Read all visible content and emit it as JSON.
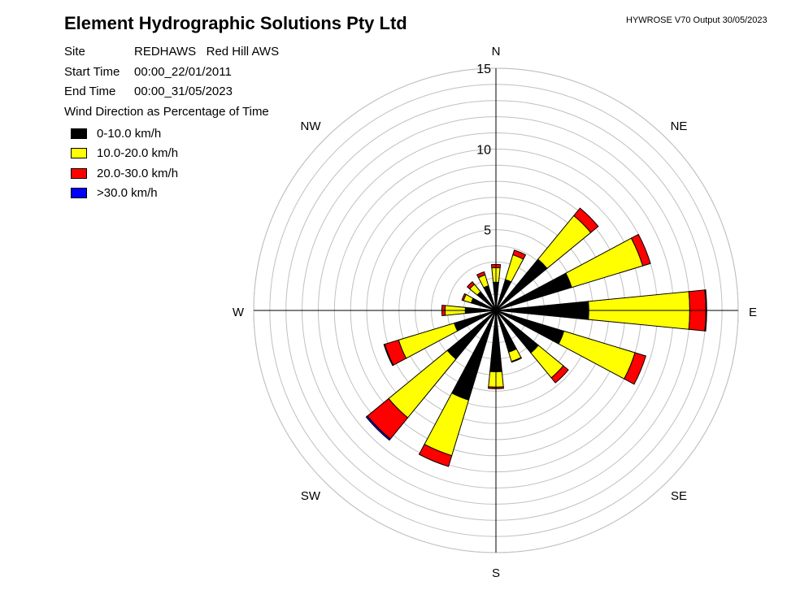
{
  "header": {
    "title": "Element Hydrographic Solutions Pty Ltd",
    "version": "HYWROSE V70  Output 30/05/2023"
  },
  "info": {
    "site_label": "Site",
    "site_value": "REDHAWS   Red Hill AWS",
    "start_label": "Start Time",
    "start_value": "00:00_22/01/2011",
    "end_label": "End Time",
    "end_value": "00:00_31/05/2023"
  },
  "chart_data": {
    "type": "wind-rose",
    "title": "Wind Direction as Percentage of Time",
    "unit": "% of time",
    "rlim": [
      0,
      15
    ],
    "ring_step": 1,
    "radial_tick_labels": [
      "5",
      "10",
      "15"
    ],
    "radial_ticks": [
      5,
      10,
      15
    ],
    "direction_labels": [
      "N",
      "NE",
      "E",
      "SE",
      "S",
      "SW",
      "W",
      "NW"
    ],
    "directions": [
      "N",
      "NNE",
      "NE",
      "ENE",
      "E",
      "ESE",
      "SE",
      "SSE",
      "S",
      "SSW",
      "SW",
      "WSW",
      "W",
      "WNW",
      "NW",
      "NNW"
    ],
    "series": [
      {
        "name": "0-10.0 km/h",
        "color": "#000000",
        "values": [
          1.75,
          2.0,
          4.1,
          4.9,
          5.75,
          4.4,
          3.4,
          2.7,
          3.8,
          5.8,
          3.9,
          2.7,
          1.9,
          1.6,
          1.5,
          1.6
        ]
      },
      {
        "name": "10.0-20.0 km/h",
        "color": "#ffff00",
        "values": [
          0.9,
          1.6,
          3.5,
          4.6,
          6.25,
          4.6,
          2.0,
          0.6,
          0.95,
          3.6,
          4.7,
          3.6,
          1.25,
          0.5,
          0.6,
          0.7
        ]
      },
      {
        "name": "20.0-30.0 km/h",
        "color": "#ff0000",
        "values": [
          0.2,
          0.3,
          0.6,
          0.5,
          1.0,
          0.7,
          0.4,
          0.05,
          0.1,
          0.7,
          1.7,
          0.9,
          0.2,
          0.1,
          0.2,
          0.2
        ]
      },
      {
        "name": ">30.0 km/h",
        "color": "#0000ff",
        "values": [
          0,
          0,
          0,
          0,
          0.05,
          0,
          0,
          0,
          0,
          0,
          0.1,
          0.05,
          0,
          0,
          0,
          0
        ]
      }
    ]
  }
}
